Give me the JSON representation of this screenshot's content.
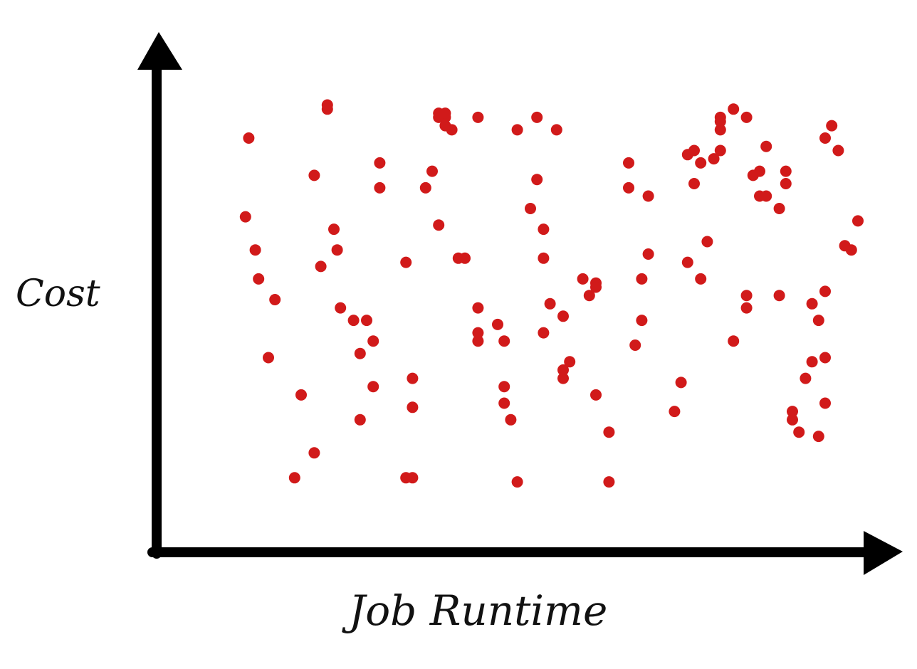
{
  "chart_data": {
    "type": "scatter",
    "title": "",
    "xlabel": "Job Runtime",
    "ylabel": "Cost",
    "xlim": [
      0,
      100
    ],
    "ylim": [
      0,
      100
    ],
    "grid": false,
    "legend": "none",
    "point_color": "#d11a1a",
    "axis_color": "#000000",
    "series": [
      {
        "x": [
          7,
          6.5,
          8,
          8.5,
          11,
          10,
          15,
          17,
          14,
          19,
          19,
          17,
          20,
          20.5,
          18,
          21,
          23,
          25,
          24,
          27,
          27,
          26,
          26,
          24,
          31,
          32,
          32,
          32,
          31,
          38,
          37,
          36,
          36,
          35,
          34,
          36,
          40,
          39,
          42,
          42,
          42,
          45,
          46,
          46,
          46,
          47,
          48,
          52,
          54,
          48,
          42,
          37,
          37,
          51,
          51,
          50,
          52,
          58,
          60,
          60,
          59,
          55,
          53,
          52,
          56,
          55,
          55,
          65,
          65,
          68,
          68,
          67,
          60,
          62,
          62,
          75,
          74,
          76,
          75,
          67,
          66,
          73,
          72,
          79,
          79,
          78,
          85,
          86,
          86,
          85,
          84,
          83,
          81,
          79,
          79,
          77,
          74,
          76,
          83,
          83,
          81,
          89,
          89,
          88,
          88,
          93,
          95,
          92,
          95,
          94,
          90,
          90,
          91,
          96,
          95,
          97,
          100,
          99,
          95,
          94,
          93,
          98
        ],
        "y": [
          89,
          70,
          62,
          55,
          50,
          36,
          27,
          13,
          7,
          97,
          96,
          80,
          67,
          62,
          58,
          48,
          45,
          45,
          37,
          83,
          77,
          40,
          29,
          21,
          7,
          7,
          31,
          24,
          59,
          91,
          92,
          95,
          94,
          81,
          77,
          68,
          60,
          60,
          48,
          42,
          40,
          44,
          40,
          29,
          25,
          21,
          6,
          60,
          91,
          91,
          94,
          94,
          95,
          94,
          79,
          72,
          67,
          55,
          54,
          53,
          51,
          46,
          49,
          42,
          35,
          33,
          31,
          83,
          77,
          75,
          61,
          55,
          27,
          18,
          6,
          86,
          85,
          83,
          78,
          45,
          39,
          30,
          23,
          93,
          91,
          84,
          75,
          75,
          87,
          81,
          80,
          94,
          96,
          94,
          86,
          64,
          59,
          55,
          48,
          51,
          40,
          81,
          78,
          72,
          51,
          49,
          36,
          31,
          25,
          17,
          23,
          21,
          18,
          92,
          89,
          86,
          69,
          62,
          52,
          45,
          35,
          63
        ]
      }
    ]
  }
}
